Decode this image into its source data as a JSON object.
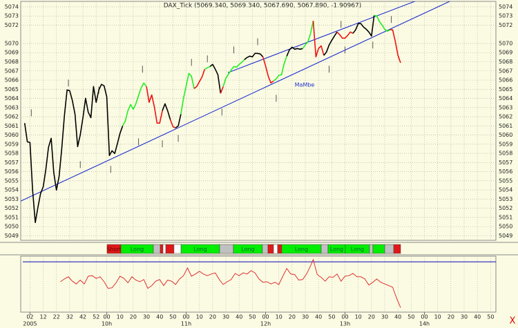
{
  "chart_data": {
    "type": "line",
    "title": "DAX_Tick (5069.340, 5069.340, 5067.690, 5067.890, -1.90967)",
    "annotation": "MaMbe",
    "corner_label": "X",
    "xlim": [
      -5,
      354
    ],
    "ylim": [
      5048.5,
      5074.6
    ],
    "yticks": [
      5074,
      5073,
      5072,
      5070,
      5069,
      5068,
      5067,
      5066,
      5065,
      5064,
      5063,
      5062,
      5061,
      5060,
      5059,
      5058,
      5057,
      5056,
      5055,
      5054,
      5053,
      5052,
      5051,
      5050,
      5049
    ],
    "xticks": [
      {
        "value": 2,
        "label": "02"
      },
      12,
      22,
      32,
      42,
      52,
      {
        "value": 60,
        "label": "00"
      },
      {
        "value": 70,
        "label": "10"
      },
      {
        "value": 80,
        "label": "20"
      },
      {
        "value": 90,
        "label": "30"
      },
      {
        "value": 100,
        "label": "40"
      },
      {
        "value": 110,
        "label": "50"
      },
      {
        "value": 120,
        "label": "00"
      },
      {
        "value": 130,
        "label": "10"
      },
      {
        "value": 140,
        "label": "20"
      },
      {
        "value": 150,
        "label": "30"
      },
      {
        "value": 160,
        "label": "40"
      },
      {
        "value": 170,
        "label": "50"
      },
      {
        "value": 180,
        "label": "00"
      },
      {
        "value": 190,
        "label": "10"
      },
      {
        "value": 200,
        "label": "20"
      },
      {
        "value": 210,
        "label": "30"
      },
      {
        "value": 220,
        "label": "40"
      },
      {
        "value": 230,
        "label": "50"
      },
      {
        "value": 240,
        "label": "00"
      },
      {
        "value": 250,
        "label": "10"
      },
      {
        "value": 260,
        "label": "20"
      },
      {
        "value": 270,
        "label": "30"
      },
      {
        "value": 280,
        "label": "40"
      },
      {
        "value": 290,
        "label": "50"
      },
      {
        "value": 300,
        "label": "00"
      },
      {
        "value": 310,
        "label": "10"
      },
      {
        "value": 320,
        "label": "20"
      },
      {
        "value": 330,
        "label": "30"
      },
      {
        "value": 340,
        "label": "40"
      },
      {
        "value": 350,
        "label": "50"
      }
    ],
    "xticks2": [
      {
        "value": 2,
        "label": "2005"
      },
      {
        "value": 60,
        "label": "10h"
      },
      {
        "value": 120,
        "label": "11h"
      },
      {
        "value": 180,
        "label": "12h"
      },
      {
        "value": 240,
        "label": "13h"
      },
      {
        "value": 300,
        "label": "14h"
      }
    ],
    "grid": true,
    "segments": [
      {
        "color": "#000000",
        "x": [
          -2,
          0,
          2,
          4,
          6,
          8,
          10,
          12,
          14,
          16,
          18,
          20,
          22,
          24,
          26,
          28,
          30,
          32,
          34,
          36,
          38,
          40,
          42,
          44,
          46,
          48,
          50,
          52,
          54,
          56,
          58,
          60,
          62,
          64,
          66,
          68,
          70,
          72
        ],
        "values": [
          5061.3,
          5059.26,
          5059.19,
          5053.98,
          5050.44,
          5052.1,
          5053.6,
          5054.36,
          5056.25,
          5058.66,
          5059.64,
          5055.87,
          5053.98,
          5055.49,
          5058.51,
          5062.06,
          5064.92,
          5064.85,
          5063.79,
          5062.28,
          5058.74,
          5060.02,
          5061.9,
          5064.02,
          5062.51,
          5061.9,
          5065.3,
          5063.57,
          5064.92,
          5065.53,
          5065.38,
          5064.17,
          5057.76,
          5058.28,
          5057.98,
          5059.04,
          5060.17,
          5061.0
        ]
      },
      {
        "color": "#22ee22",
        "x": [
          72,
          74,
          76,
          78,
          80,
          82,
          84,
          86,
          88,
          90
        ],
        "values": [
          5061.0,
          5061.53,
          5062.66,
          5063.34,
          5062.81,
          5063.41,
          5064.32,
          5065.15,
          5065.68,
          5065.3
        ]
      },
      {
        "color": "#ee1111",
        "x": [
          90,
          92,
          94,
          96,
          98,
          100,
          102
        ],
        "values": [
          5065.3,
          5063.57,
          5064.39,
          5063.04,
          5061.3,
          5061.3,
          5062.66
        ]
      },
      {
        "color": "#000000",
        "x": [
          102,
          104,
          106,
          108
        ],
        "values": [
          5062.66,
          5063.41,
          5062.66,
          5061.68
        ]
      },
      {
        "color": "#ee1111",
        "x": [
          108,
          110,
          112
        ],
        "values": [
          5061.68,
          5060.92,
          5060.77
        ]
      },
      {
        "color": "#000000",
        "x": [
          112,
          114,
          116
        ],
        "values": [
          5060.77,
          5061.0,
          5062.28
        ]
      },
      {
        "color": "#22ee22",
        "x": [
          116,
          118,
          120,
          122,
          124,
          126
        ],
        "values": [
          5062.28,
          5064.02,
          5065.38,
          5066.73,
          5066.43,
          5065.07
        ]
      },
      {
        "color": "#ee1111",
        "x": [
          126,
          128,
          130,
          132,
          134
        ],
        "values": [
          5065.07,
          5065.3,
          5065.83,
          5066.36,
          5067.19
        ]
      },
      {
        "color": "#22ee22",
        "x": [
          134,
          136,
          138
        ],
        "values": [
          5067.19,
          5067.34,
          5067.49
        ]
      },
      {
        "color": "#000000",
        "x": [
          138,
          140,
          142,
          144,
          146
        ],
        "values": [
          5067.49,
          5067.71,
          5067.19,
          5066.58,
          5064.55
        ]
      },
      {
        "color": "#ee1111",
        "x": [
          146,
          148
        ],
        "values": [
          5064.55,
          5065.3
        ]
      },
      {
        "color": "#22ee22",
        "x": [
          148,
          150,
          152,
          154,
          156,
          158,
          160,
          162,
          164
        ],
        "values": [
          5065.3,
          5066.2,
          5066.66,
          5067.11,
          5067.49,
          5067.41,
          5067.71,
          5067.94,
          5068.24
        ]
      },
      {
        "color": "#000000",
        "x": [
          164,
          166,
          168,
          170,
          172,
          174,
          176,
          178
        ],
        "values": [
          5068.24,
          5068.47,
          5068.62,
          5068.54,
          5068.92,
          5068.92,
          5068.85,
          5068.54
        ]
      },
      {
        "color": "#ee1111",
        "x": [
          178,
          180,
          182,
          184,
          186
        ],
        "values": [
          5068.54,
          5067.56,
          5066.43,
          5065.68,
          5065.9
        ]
      },
      {
        "color": "#22ee22",
        "x": [
          186,
          188,
          190,
          192,
          194,
          196
        ],
        "values": [
          5065.9,
          5066.13,
          5066.51,
          5066.58,
          5067.79,
          5068.62
        ]
      },
      {
        "color": "#000000",
        "x": [
          196,
          198,
          200,
          202,
          204,
          206,
          208
        ],
        "values": [
          5068.62,
          5069.3,
          5069.6,
          5069.37,
          5069.45,
          5069.37,
          5069.45
        ]
      },
      {
        "color": "#22ee22",
        "x": [
          208,
          210,
          212,
          214,
          216
        ],
        "values": [
          5069.45,
          5069.83,
          5070.2,
          5071.11,
          5072.47
        ]
      },
      {
        "color": "#ee1111",
        "x": [
          216,
          218,
          220,
          222,
          224
        ],
        "values": [
          5072.47,
          5068.54,
          5069.45,
          5069.75,
          5068.7
        ]
      },
      {
        "color": "#000000",
        "x": [
          224,
          226,
          228,
          230,
          232,
          234
        ],
        "values": [
          5068.7,
          5069.07,
          5069.83,
          5070.35,
          5070.81,
          5071.26
        ]
      },
      {
        "color": "#ee1111",
        "x": [
          234,
          236,
          238,
          240,
          242,
          244,
          246
        ],
        "values": [
          5071.26,
          5070.96,
          5070.58,
          5070.58,
          5070.88,
          5071.26,
          5071.11
        ]
      },
      {
        "color": "#000000",
        "x": [
          246,
          248,
          250,
          252,
          254,
          256,
          258,
          260,
          262
        ],
        "values": [
          5071.11,
          5071.49,
          5072.17,
          5072.17,
          5071.79,
          5071.56,
          5071.26,
          5070.81,
          5073.07
        ]
      },
      {
        "color": "#22ee22",
        "x": [
          262,
          264,
          266,
          268,
          270,
          272,
          274
        ],
        "values": [
          5073.07,
          5073.0,
          5072.39,
          5072.02,
          5071.56,
          5071.34,
          5071.49
        ]
      },
      {
        "color": "#ee1111",
        "x": [
          274,
          276,
          278,
          280,
          282
        ],
        "values": [
          5071.49,
          5071.49,
          5070.2,
          5068.7,
          5067.89
        ]
      }
    ],
    "markers": {
      "color": "#555555",
      "x": [
        3,
        31,
        40,
        54,
        63,
        87,
        84,
        102,
        114,
        124,
        136,
        147,
        156,
        174,
        188,
        228,
        237,
        240,
        261,
        275
      ],
      "values": [
        5062.43,
        5065.68,
        5056.77,
        5064.92,
        5056.25,
        5067.19,
        5059.26,
        5059.04,
        5059.64,
        5067.94,
        5068.32,
        5062.51,
        5069.3,
        5070.2,
        5064.02,
        5067.19,
        5072.09,
        5069.3,
        5069.83,
        5072.62
      ]
    },
    "trendlines": [
      {
        "color": "#2030d0",
        "x": [
          -5,
          321
        ],
        "values": [
          5052.78,
          5074.73
        ]
      },
      {
        "color": "#2030d0",
        "x": [
          151.5,
          295
        ],
        "values": [
          5066.81,
          5074.73
        ]
      }
    ],
    "signals": [
      {
        "x": [
          60.2,
          70.7
        ],
        "color": "#e01818",
        "label": "Short"
      },
      {
        "x": [
          70.7,
          95.2
        ],
        "color": "#00ee00",
        "label": "Long"
      },
      {
        "x": [
          95.2,
          100.4
        ],
        "color": "#c0c0c0"
      },
      {
        "x": [
          100.4,
          102.5
        ],
        "color": "#e01818"
      },
      {
        "x": [
          102.5,
          104.6
        ],
        "color": "#ffffff"
      },
      {
        "x": [
          104.6,
          110.8
        ],
        "color": "#e01818"
      },
      {
        "x": [
          110.8,
          116.1
        ],
        "color": "#ffffff"
      },
      {
        "x": [
          116.1,
          145.3
        ],
        "color": "#00ee00",
        "label": "Long"
      },
      {
        "x": [
          145.3,
          155.7
        ],
        "color": "#c0c0c0"
      },
      {
        "x": [
          155.7,
          177.6
        ],
        "color": "#00ee00",
        "label": "Long"
      },
      {
        "x": [
          177.6,
          181.8
        ],
        "color": "#c0c0c0"
      },
      {
        "x": [
          181.8,
          186
        ],
        "color": "#e01818"
      },
      {
        "x": [
          186,
          189.1
        ],
        "color": "#ffffff"
      },
      {
        "x": [
          189.1,
          192.2
        ],
        "color": "#e01818"
      },
      {
        "x": [
          192.2,
          222
        ],
        "color": "#00ee00",
        "label": "Long"
      },
      {
        "x": [
          222,
          227.2
        ],
        "color": "#c0c0c0"
      },
      {
        "x": [
          227.2,
          240.2
        ],
        "color": "#00ee00",
        "label": "Long"
      },
      {
        "x": [
          240.2,
          258.5
        ],
        "color": "#00ee00",
        "label": "Long"
      },
      {
        "x": [
          258.5,
          261.1
        ],
        "color": "#c0c0c0"
      },
      {
        "x": [
          261.1,
          270
        ],
        "color": "#00ee00"
      },
      {
        "x": [
          270,
          276.8
        ],
        "color": "#c0c0c0"
      },
      {
        "x": [
          276.8,
          282
        ],
        "color": "#e01818"
      }
    ],
    "indicator": {
      "color": "#e03030",
      "ylim": [
        0,
        100
      ],
      "level": 91,
      "level_color": "#2020c0",
      "x": [
        25,
        28,
        31,
        34,
        37,
        40,
        43,
        46,
        49,
        52,
        55,
        58,
        61,
        64,
        67,
        70,
        73,
        76,
        79,
        82,
        85,
        88,
        91,
        94,
        97,
        100,
        103,
        106,
        109,
        112,
        115,
        118,
        121,
        124,
        127,
        130,
        133,
        136,
        139,
        142,
        145,
        148,
        151,
        154,
        157,
        160,
        163,
        166,
        169,
        172,
        175,
        178,
        181,
        184,
        187,
        190,
        193,
        196,
        199,
        202,
        205,
        208,
        211,
        214,
        216,
        219,
        222,
        225,
        228,
        231,
        234,
        237,
        240,
        243,
        246,
        249,
        252,
        255,
        258,
        261,
        264,
        267,
        270,
        273,
        276,
        279,
        282
      ],
      "values": [
        55,
        60,
        64,
        56,
        51,
        58,
        51,
        65,
        66,
        61,
        64,
        55,
        43,
        44,
        53,
        65,
        61,
        53,
        64,
        58,
        55,
        59,
        43,
        48,
        56,
        59,
        48,
        58,
        56,
        50,
        60,
        66,
        80,
        65,
        69,
        74,
        69,
        66,
        69,
        71,
        59,
        50,
        55,
        59,
        70,
        66,
        71,
        69,
        75,
        71,
        60,
        54,
        55,
        51,
        54,
        50,
        65,
        79,
        69,
        68,
        58,
        59,
        69,
        84,
        95,
        68,
        63,
        56,
        64,
        63,
        69,
        56,
        65,
        66,
        70,
        64,
        64,
        60,
        49,
        54,
        60,
        54,
        51,
        48,
        45,
        25,
        8
      ]
    }
  }
}
